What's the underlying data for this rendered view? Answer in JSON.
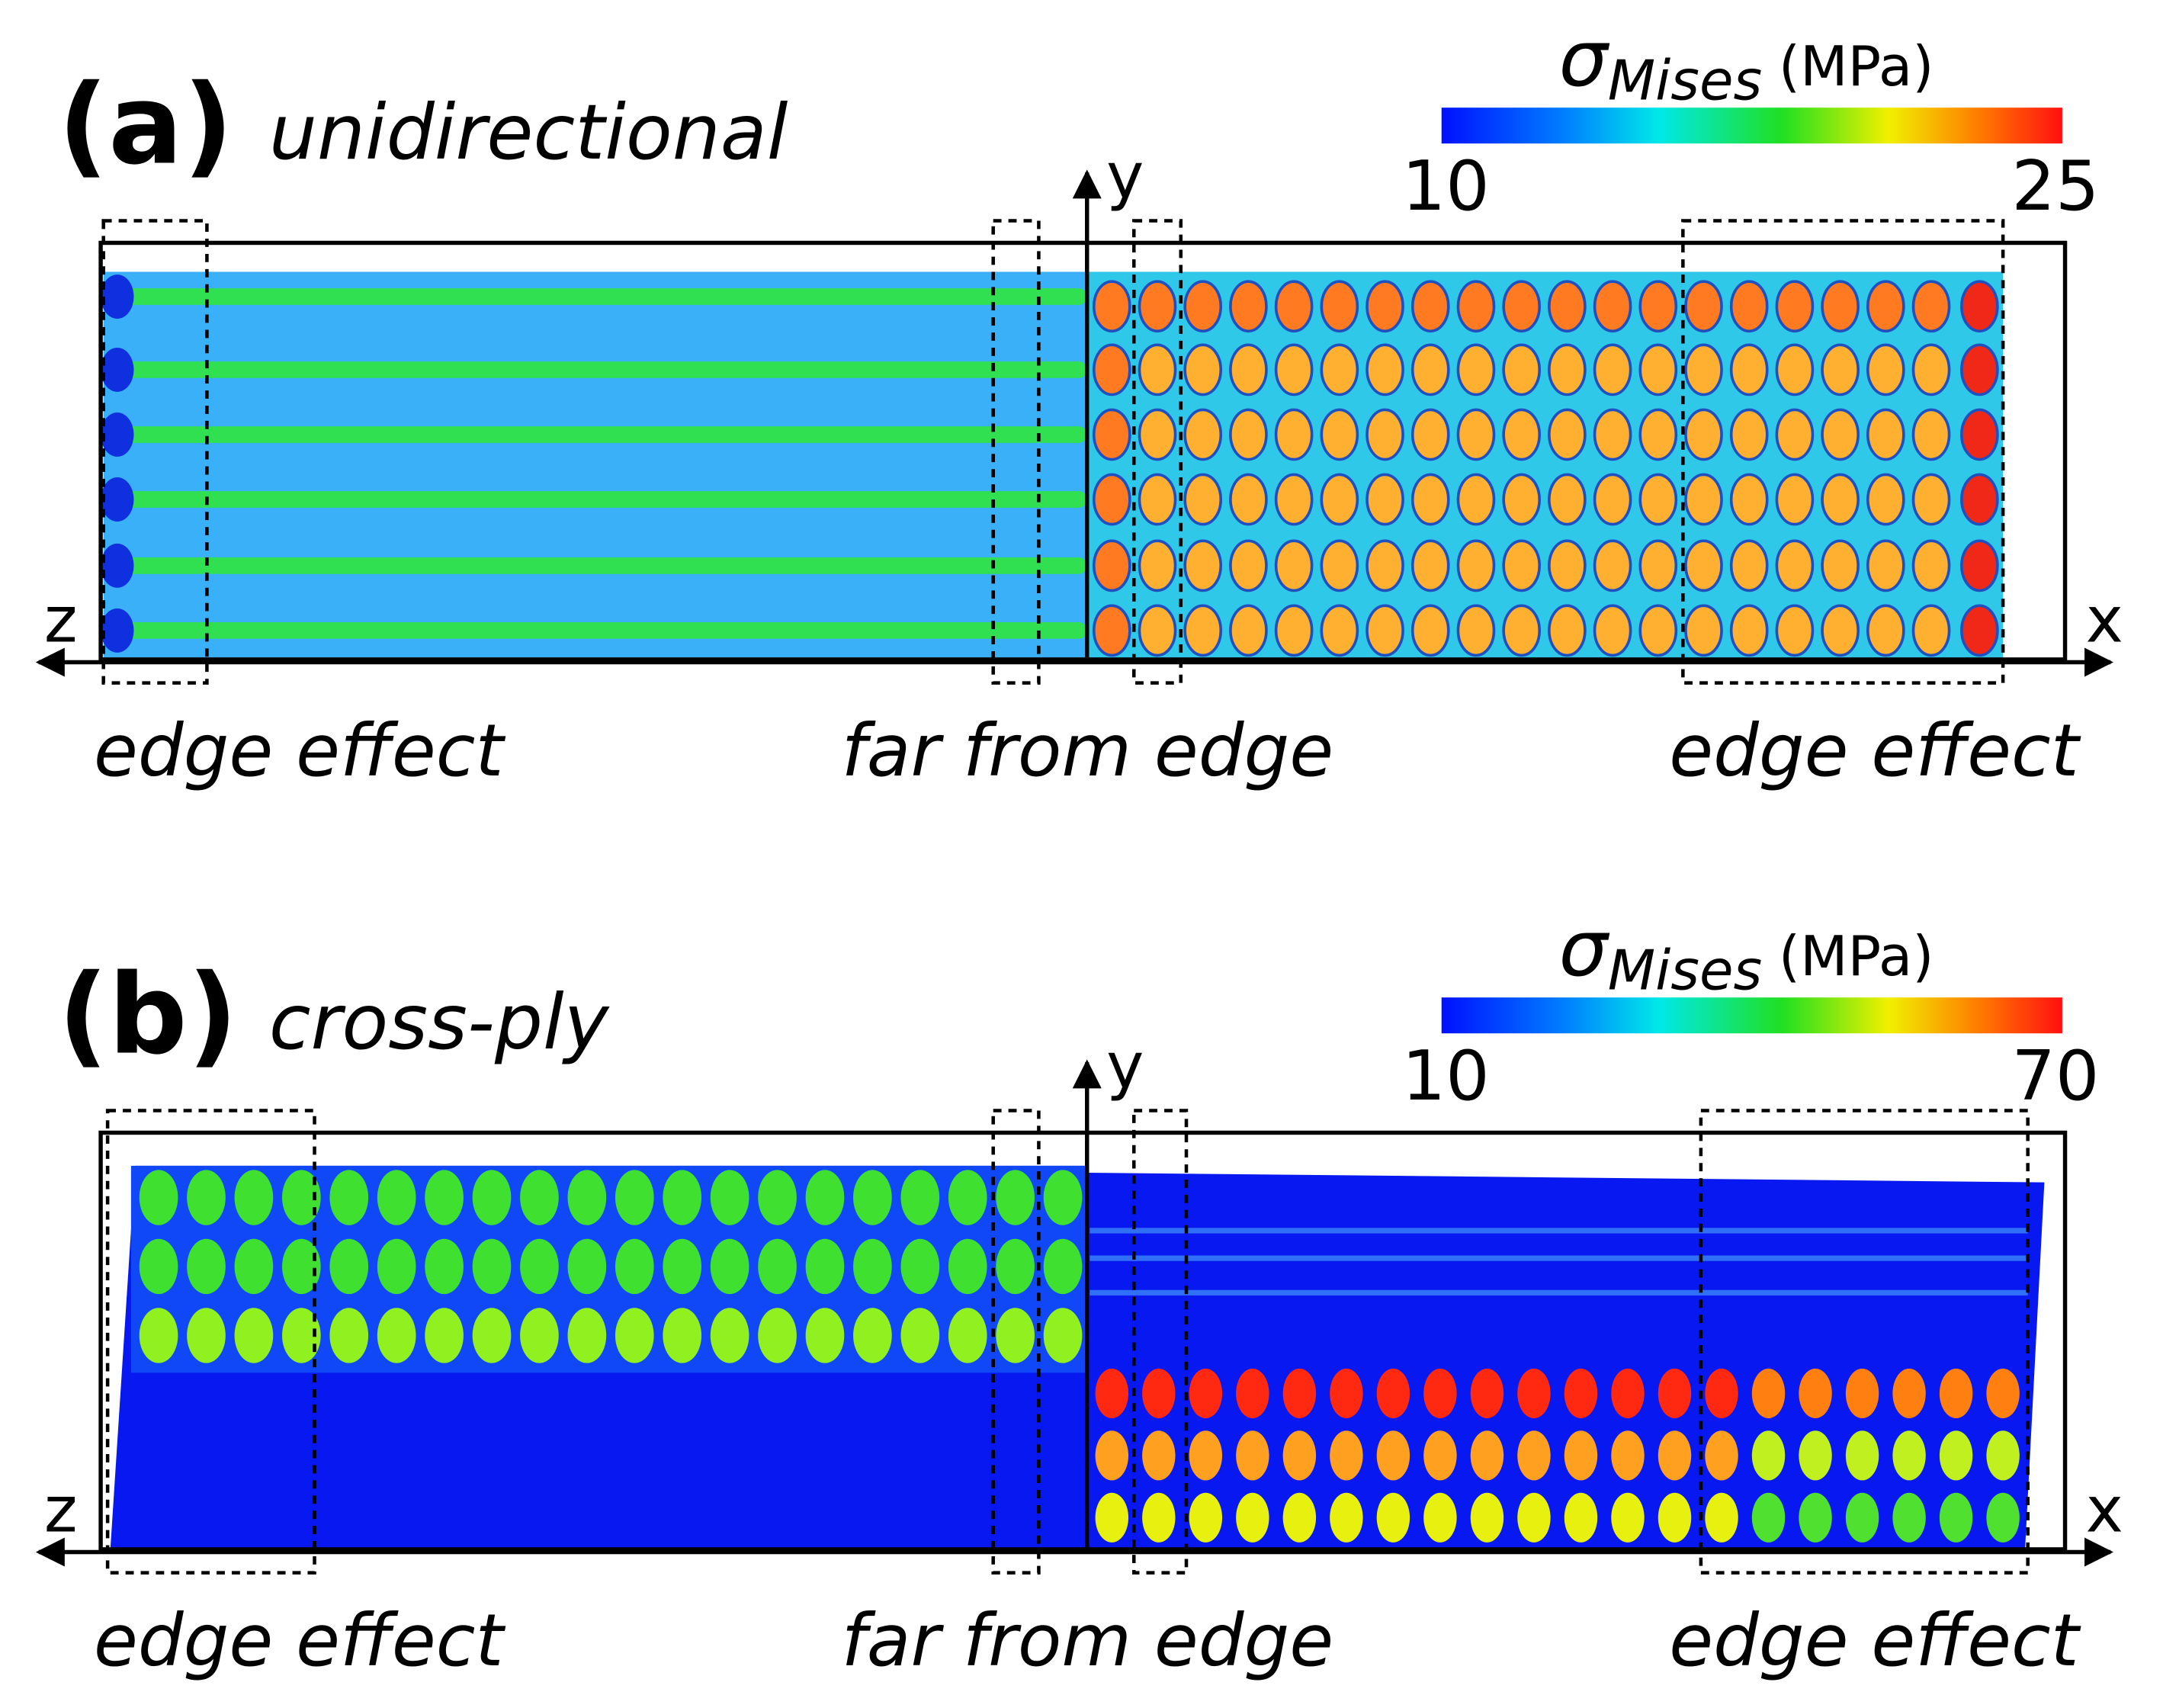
{
  "panels": [
    {
      "label": "(a)",
      "title": "unidirectional",
      "colorbar": {
        "symbol": "σ",
        "subscript": "Mises",
        "unit": "(MPa)",
        "min": 10,
        "max": 25
      },
      "axes": {
        "y": "y",
        "z": "z",
        "x": "x"
      },
      "annotations": [
        "edge effect",
        "far from edge",
        "edge effect"
      ]
    },
    {
      "label": "(b)",
      "title": "cross-ply",
      "colorbar": {
        "symbol": "σ",
        "subscript": "Mises",
        "unit": "(MPa)",
        "min": 10,
        "max": 70
      },
      "axes": {
        "y": "y",
        "z": "z",
        "x": "x"
      },
      "annotations": [
        "edge effect",
        "far from edge",
        "edge effect"
      ]
    }
  ]
}
